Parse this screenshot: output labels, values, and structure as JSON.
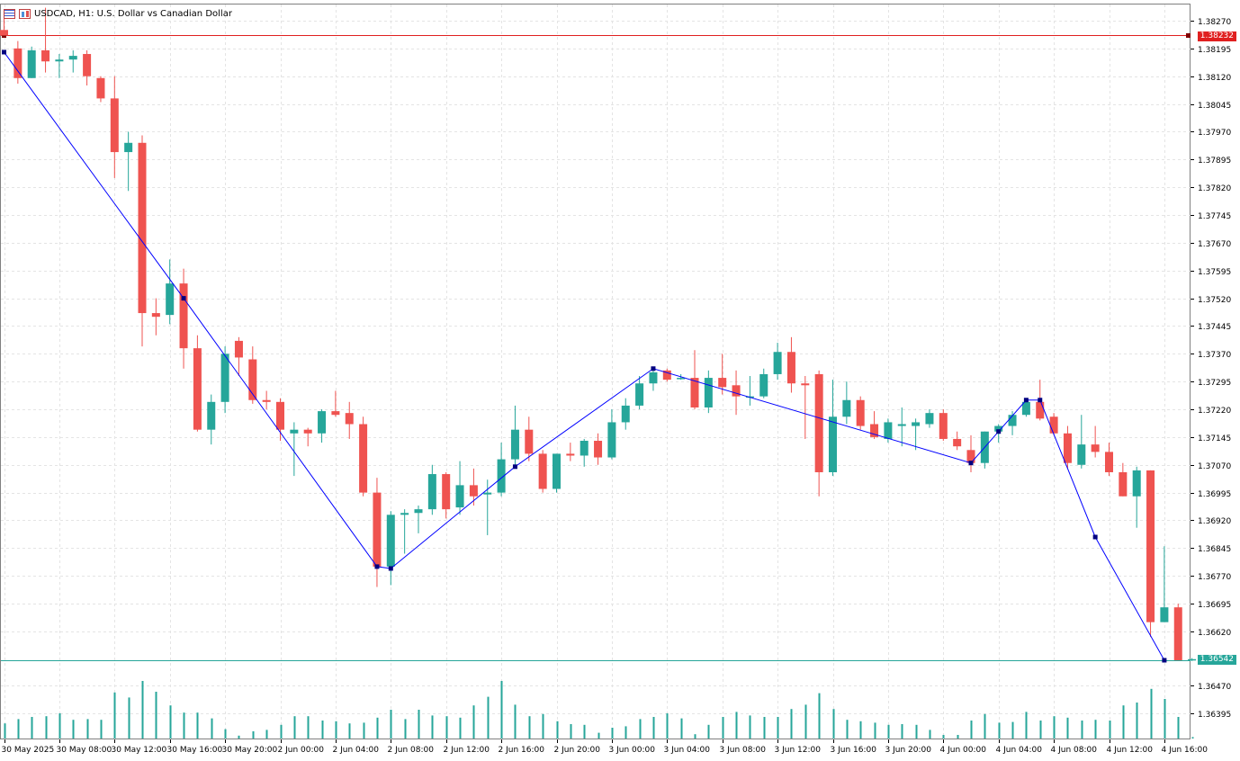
{
  "window": {
    "symbol": "USDCAD",
    "timeframe": "H1",
    "title": "USDCAD, H1:  U.S. Dollar vs Canadian Dollar"
  },
  "price_axis": {
    "labels": [
      "1.38270",
      "1.38195",
      "1.38120",
      "1.38045",
      "1.37970",
      "1.37895",
      "1.37820",
      "1.37745",
      "1.37670",
      "1.37595",
      "1.37520",
      "1.37445",
      "1.37370",
      "1.37295",
      "1.37220",
      "1.37145",
      "1.37070",
      "1.36995",
      "1.36920",
      "1.36845",
      "1.36770",
      "1.36695",
      "1.36620"
    ],
    "volume_labels": [
      "1.36470",
      "1.36395"
    ]
  },
  "time_axis": {
    "labels": [
      "30 May 2025",
      "30 May 08:00",
      "30 May 12:00",
      "30 May 16:00",
      "30 May 20:00",
      "2 Jun 00:00",
      "2 Jun 04:00",
      "2 Jun 08:00",
      "2 Jun 12:00",
      "2 Jun 16:00",
      "2 Jun 20:00",
      "3 Jun 00:00",
      "3 Jun 04:00",
      "3 Jun 08:00",
      "3 Jun 12:00",
      "3 Jun 16:00",
      "3 Jun 20:00",
      "4 Jun 00:00",
      "4 Jun 04:00",
      "4 Jun 08:00",
      "4 Jun 12:00",
      "4 Jun 16:00"
    ]
  },
  "tags": {
    "ask_line": "1.38232",
    "bid_line": "1.36542"
  },
  "colors": {
    "bull": "#26a69a",
    "bear": "#ef5350",
    "zigzag": "#0000ff",
    "zigzag_node": "#000080",
    "ask": "#e02020",
    "bid": "#26a69a",
    "grid": "#e4e4e4"
  },
  "chart_data": {
    "type": "candlestick",
    "timeframe": "H1",
    "price_range": [
      1.3655,
      1.3829
    ],
    "candles": [
      {
        "o": 1.38245,
        "h": 1.3829,
        "l": 1.3823,
        "c": 1.3823
      },
      {
        "o": 1.38195,
        "h": 1.38215,
        "l": 1.381,
        "c": 1.38115
      },
      {
        "o": 1.38115,
        "h": 1.382,
        "l": 1.38115,
        "c": 1.3819
      },
      {
        "o": 1.3819,
        "h": 1.38305,
        "l": 1.3813,
        "c": 1.3816
      },
      {
        "o": 1.3816,
        "h": 1.3818,
        "l": 1.38115,
        "c": 1.38165
      },
      {
        "o": 1.38165,
        "h": 1.3819,
        "l": 1.3813,
        "c": 1.38175
      },
      {
        "o": 1.3818,
        "h": 1.3819,
        "l": 1.38095,
        "c": 1.3812
      },
      {
        "o": 1.38115,
        "h": 1.3812,
        "l": 1.3805,
        "c": 1.3806
      },
      {
        "o": 1.3806,
        "h": 1.3812,
        "l": 1.37845,
        "c": 1.37915
      },
      {
        "o": 1.37915,
        "h": 1.3797,
        "l": 1.3781,
        "c": 1.3794
      },
      {
        "o": 1.3794,
        "h": 1.3796,
        "l": 1.3739,
        "c": 1.3748
      },
      {
        "o": 1.3748,
        "h": 1.3752,
        "l": 1.3742,
        "c": 1.3747
      },
      {
        "o": 1.37475,
        "h": 1.37625,
        "l": 1.3745,
        "c": 1.3756
      },
      {
        "o": 1.3756,
        "h": 1.376,
        "l": 1.3733,
        "c": 1.37385
      },
      {
        "o": 1.37385,
        "h": 1.3742,
        "l": 1.3716,
        "c": 1.37165
      },
      {
        "o": 1.37165,
        "h": 1.3726,
        "l": 1.37125,
        "c": 1.3724
      },
      {
        "o": 1.3724,
        "h": 1.3739,
        "l": 1.3721,
        "c": 1.3737
      },
      {
        "o": 1.37405,
        "h": 1.37415,
        "l": 1.3731,
        "c": 1.3736
      },
      {
        "o": 1.37355,
        "h": 1.3739,
        "l": 1.37235,
        "c": 1.37245
      },
      {
        "o": 1.37245,
        "h": 1.3727,
        "l": 1.3722,
        "c": 1.3724
      },
      {
        "o": 1.3724,
        "h": 1.3725,
        "l": 1.37135,
        "c": 1.37165
      },
      {
        "o": 1.37155,
        "h": 1.37185,
        "l": 1.3704,
        "c": 1.37165
      },
      {
        "o": 1.37165,
        "h": 1.3717,
        "l": 1.3712,
        "c": 1.37155
      },
      {
        "o": 1.37155,
        "h": 1.3722,
        "l": 1.3713,
        "c": 1.37215
      },
      {
        "o": 1.37215,
        "h": 1.3727,
        "l": 1.372,
        "c": 1.37205
      },
      {
        "o": 1.3721,
        "h": 1.3724,
        "l": 1.3714,
        "c": 1.3718
      },
      {
        "o": 1.3718,
        "h": 1.372,
        "l": 1.36985,
        "c": 1.36995
      },
      {
        "o": 1.36995,
        "h": 1.37035,
        "l": 1.3674,
        "c": 1.36795
      },
      {
        "o": 1.36795,
        "h": 1.36945,
        "l": 1.36745,
        "c": 1.36935
      },
      {
        "o": 1.36935,
        "h": 1.3695,
        "l": 1.3683,
        "c": 1.3694
      },
      {
        "o": 1.3694,
        "h": 1.3696,
        "l": 1.36885,
        "c": 1.3695
      },
      {
        "o": 1.3695,
        "h": 1.3707,
        "l": 1.36935,
        "c": 1.37045
      },
      {
        "o": 1.37045,
        "h": 1.3705,
        "l": 1.36925,
        "c": 1.3695
      },
      {
        "o": 1.36955,
        "h": 1.3708,
        "l": 1.36935,
        "c": 1.37015
      },
      {
        "o": 1.37015,
        "h": 1.3706,
        "l": 1.3696,
        "c": 1.36985
      },
      {
        "o": 1.3699,
        "h": 1.3703,
        "l": 1.3688,
        "c": 1.36995
      },
      {
        "o": 1.36995,
        "h": 1.3713,
        "l": 1.36985,
        "c": 1.37085
      },
      {
        "o": 1.37085,
        "h": 1.3723,
        "l": 1.37065,
        "c": 1.37165
      },
      {
        "o": 1.37165,
        "h": 1.372,
        "l": 1.3708,
        "c": 1.371
      },
      {
        "o": 1.371,
        "h": 1.3711,
        "l": 1.36995,
        "c": 1.37005
      },
      {
        "o": 1.37005,
        "h": 1.371,
        "l": 1.36995,
        "c": 1.371
      },
      {
        "o": 1.371,
        "h": 1.3713,
        "l": 1.3708,
        "c": 1.37095
      },
      {
        "o": 1.37095,
        "h": 1.3714,
        "l": 1.37065,
        "c": 1.37135
      },
      {
        "o": 1.37135,
        "h": 1.37155,
        "l": 1.3707,
        "c": 1.3709
      },
      {
        "o": 1.3709,
        "h": 1.3722,
        "l": 1.37085,
        "c": 1.37185
      },
      {
        "o": 1.37185,
        "h": 1.3725,
        "l": 1.37165,
        "c": 1.3723
      },
      {
        "o": 1.3723,
        "h": 1.3731,
        "l": 1.3722,
        "c": 1.3729
      },
      {
        "o": 1.3729,
        "h": 1.3733,
        "l": 1.3727,
        "c": 1.3732
      },
      {
        "o": 1.37325,
        "h": 1.3733,
        "l": 1.37295,
        "c": 1.373
      },
      {
        "o": 1.37305,
        "h": 1.37315,
        "l": 1.373,
        "c": 1.37305
      },
      {
        "o": 1.37305,
        "h": 1.3738,
        "l": 1.3722,
        "c": 1.37225
      },
      {
        "o": 1.37225,
        "h": 1.37325,
        "l": 1.3721,
        "c": 1.37305
      },
      {
        "o": 1.37305,
        "h": 1.3737,
        "l": 1.3726,
        "c": 1.3728
      },
      {
        "o": 1.37285,
        "h": 1.37325,
        "l": 1.37205,
        "c": 1.37255
      },
      {
        "o": 1.37255,
        "h": 1.3731,
        "l": 1.3723,
        "c": 1.37255
      },
      {
        "o": 1.37255,
        "h": 1.3733,
        "l": 1.3725,
        "c": 1.37315
      },
      {
        "o": 1.37315,
        "h": 1.374,
        "l": 1.373,
        "c": 1.37375
      },
      {
        "o": 1.37375,
        "h": 1.37415,
        "l": 1.37265,
        "c": 1.3729
      },
      {
        "o": 1.3729,
        "h": 1.3731,
        "l": 1.3714,
        "c": 1.37285
      },
      {
        "o": 1.37315,
        "h": 1.37325,
        "l": 1.36985,
        "c": 1.3705
      },
      {
        "o": 1.3705,
        "h": 1.373,
        "l": 1.3704,
        "c": 1.372
      },
      {
        "o": 1.372,
        "h": 1.37295,
        "l": 1.3718,
        "c": 1.37245
      },
      {
        "o": 1.37245,
        "h": 1.37255,
        "l": 1.37165,
        "c": 1.37175
      },
      {
        "o": 1.3718,
        "h": 1.37215,
        "l": 1.3714,
        "c": 1.37145
      },
      {
        "o": 1.3714,
        "h": 1.37195,
        "l": 1.3713,
        "c": 1.37185
      },
      {
        "o": 1.37175,
        "h": 1.37225,
        "l": 1.3712,
        "c": 1.3718
      },
      {
        "o": 1.37175,
        "h": 1.37195,
        "l": 1.3711,
        "c": 1.37185
      },
      {
        "o": 1.3718,
        "h": 1.3722,
        "l": 1.3717,
        "c": 1.3721
      },
      {
        "o": 1.3721,
        "h": 1.3722,
        "l": 1.37135,
        "c": 1.3714
      },
      {
        "o": 1.3714,
        "h": 1.3716,
        "l": 1.3711,
        "c": 1.3712
      },
      {
        "o": 1.3711,
        "h": 1.3715,
        "l": 1.3705,
        "c": 1.37075
      },
      {
        "o": 1.37075,
        "h": 1.3716,
        "l": 1.3706,
        "c": 1.3716
      },
      {
        "o": 1.3716,
        "h": 1.3718,
        "l": 1.3713,
        "c": 1.37175
      },
      {
        "o": 1.37175,
        "h": 1.37215,
        "l": 1.3715,
        "c": 1.37205
      },
      {
        "o": 1.37205,
        "h": 1.3725,
        "l": 1.372,
        "c": 1.3724
      },
      {
        "o": 1.3724,
        "h": 1.373,
        "l": 1.3719,
        "c": 1.37195
      },
      {
        "o": 1.372,
        "h": 1.3721,
        "l": 1.3715,
        "c": 1.37155
      },
      {
        "o": 1.37155,
        "h": 1.37175,
        "l": 1.3706,
        "c": 1.37075
      },
      {
        "o": 1.3707,
        "h": 1.37205,
        "l": 1.3706,
        "c": 1.37125
      },
      {
        "o": 1.37125,
        "h": 1.37175,
        "l": 1.3709,
        "c": 1.37105
      },
      {
        "o": 1.37105,
        "h": 1.3713,
        "l": 1.3704,
        "c": 1.3705
      },
      {
        "o": 1.3705,
        "h": 1.37075,
        "l": 1.36985,
        "c": 1.36985
      },
      {
        "o": 1.36985,
        "h": 1.37065,
        "l": 1.369,
        "c": 1.37055
      },
      {
        "o": 1.37055,
        "h": 1.37055,
        "l": 1.36605,
        "c": 1.36645
      },
      {
        "o": 1.36645,
        "h": 1.3685,
        "l": 1.36645,
        "c": 1.36685
      },
      {
        "o": 1.36685,
        "h": 1.36695,
        "l": 1.36542,
        "c": 1.36542
      },
      {
        "o": 1.36542,
        "h": 1.36548,
        "l": 1.3654,
        "c": 1.36545
      }
    ],
    "volumes": [
      0.21,
      0.27,
      0.3,
      0.31,
      0.35,
      0.26,
      0.27,
      0.26,
      0.64,
      0.57,
      0.8,
      0.65,
      0.46,
      0.36,
      0.36,
      0.28,
      0.13,
      0.04,
      0.1,
      0.12,
      0.19,
      0.31,
      0.31,
      0.25,
      0.24,
      0.21,
      0.22,
      0.29,
      0.4,
      0.27,
      0.4,
      0.32,
      0.31,
      0.29,
      0.46,
      0.58,
      0.8,
      0.47,
      0.31,
      0.34,
      0.24,
      0.2,
      0.19,
      0.08,
      0.15,
      0.17,
      0.27,
      0.3,
      0.35,
      0.28,
      0.06,
      0.19,
      0.3,
      0.37,
      0.32,
      0.3,
      0.3,
      0.41,
      0.47,
      0.63,
      0.41,
      0.26,
      0.24,
      0.22,
      0.19,
      0.2,
      0.19,
      0.12,
      0.05,
      0.05,
      0.25,
      0.34,
      0.22,
      0.23,
      0.37,
      0.25,
      0.31,
      0.29,
      0.25,
      0.26,
      0.25,
      0.46,
      0.5,
      0.69,
      0.55,
      0.3,
      0.02
    ]
  },
  "zigzag_points": [
    {
      "bar": 0,
      "price": 1.38185
    },
    {
      "bar": 13,
      "price": 1.3752
    },
    {
      "bar": 27,
      "price": 1.36795
    },
    {
      "bar": 28,
      "price": 1.3679
    },
    {
      "bar": 37,
      "price": 1.37065
    },
    {
      "bar": 47,
      "price": 1.3733
    },
    {
      "bar": 70,
      "price": 1.37075
    },
    {
      "bar": 72,
      "price": 1.3716
    },
    {
      "bar": 74,
      "price": 1.37245
    },
    {
      "bar": 75,
      "price": 1.37245
    },
    {
      "bar": 79,
      "price": 1.36875
    },
    {
      "bar": 84,
      "price": 1.36542
    }
  ]
}
